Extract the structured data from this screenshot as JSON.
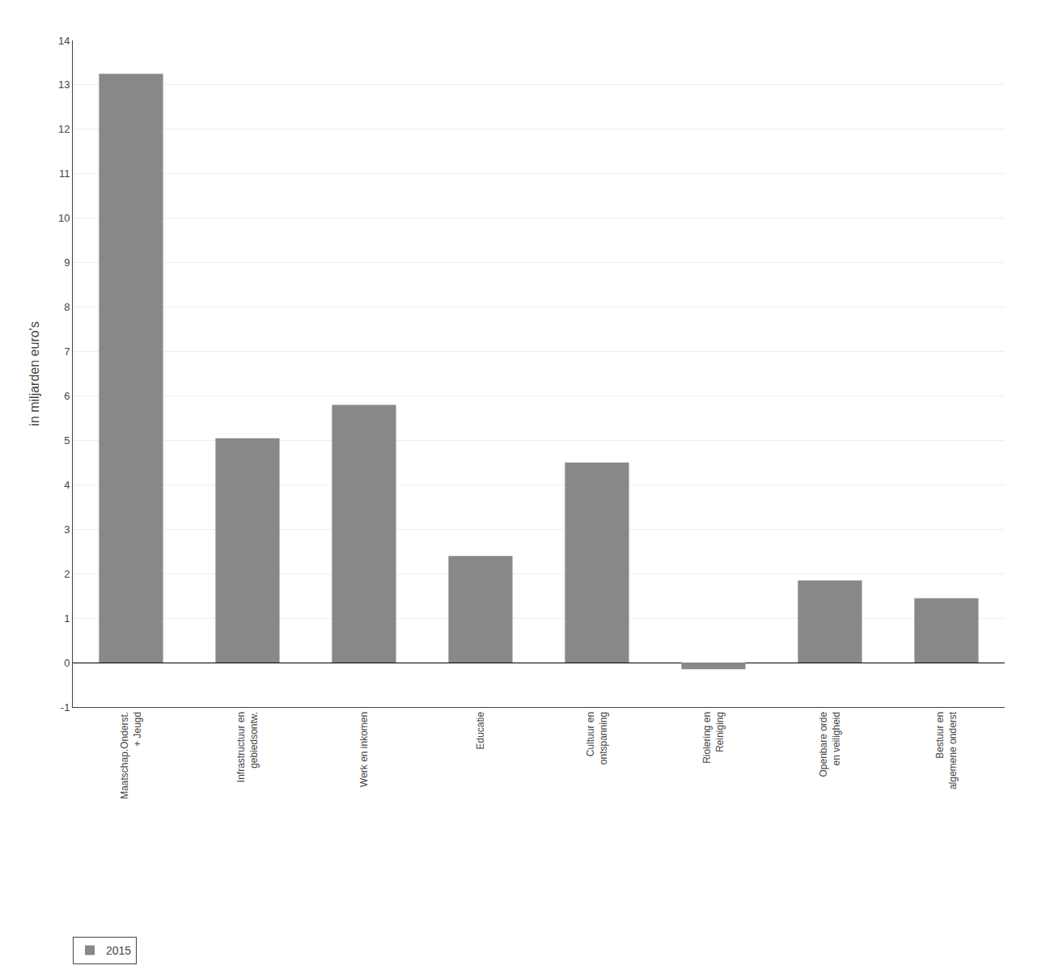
{
  "chart_data": {
    "type": "bar",
    "categories": [
      "Maatschap.Onderst.\n+ Jeugd",
      "Infrastructuur en\ngebiedsontw.",
      "Werk en inkomen",
      "Educatie",
      "Cultuur en\nontspanning",
      "Riolering en\nReiniging",
      "Openbare orde\nen veiligheid",
      "Bestuur en\nalgemene onderst"
    ],
    "series": [
      {
        "name": "2015",
        "color": "#888888",
        "values": [
          13.25,
          5.05,
          5.8,
          2.4,
          4.5,
          -0.15,
          1.85,
          1.45
        ]
      }
    ],
    "ylabel": "in miljarden euro's",
    "ylim": [
      -1,
      14
    ],
    "yticks": [
      -1,
      0,
      1,
      2,
      3,
      4,
      5,
      6,
      7,
      8,
      9,
      10,
      11,
      12,
      13,
      14
    ],
    "grid": true,
    "legend": "lower left"
  }
}
